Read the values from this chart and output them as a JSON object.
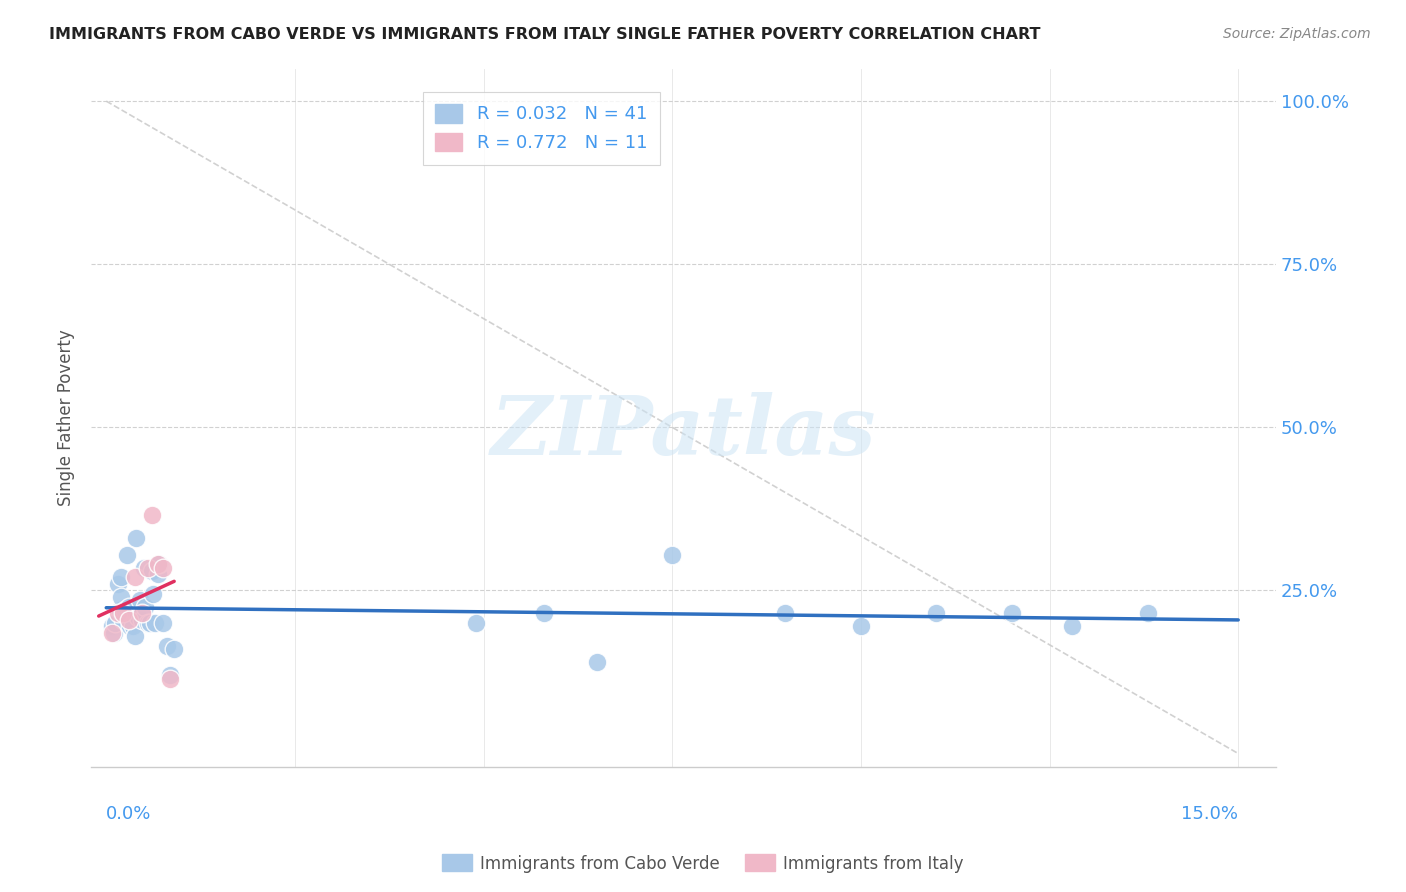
{
  "title": "IMMIGRANTS FROM CABO VERDE VS IMMIGRANTS FROM ITALY SINGLE FATHER POVERTY CORRELATION CHART",
  "source": "Source: ZipAtlas.com",
  "ylabel": "Single Father Poverty",
  "xlim": [
    0.0,
    0.15
  ],
  "ylim": [
    0.0,
    1.0
  ],
  "cabo_verde_R": 0.032,
  "cabo_verde_N": 41,
  "italy_R": 0.772,
  "italy_N": 11,
  "cabo_verde_color": "#a8c8e8",
  "italy_color": "#f0b8c8",
  "cabo_verde_line_color": "#3070c0",
  "italy_line_color": "#e03060",
  "text_color_blue": "#4499ee",
  "label_color": "#555555",
  "grid_color": "#cccccc",
  "cabo_verde_x": [
    0.0008,
    0.001,
    0.0012,
    0.0015,
    0.0018,
    0.002,
    0.002,
    0.0022,
    0.0025,
    0.0028,
    0.003,
    0.0032,
    0.0035,
    0.0038,
    0.004,
    0.0042,
    0.0045,
    0.0048,
    0.005,
    0.0052,
    0.0055,
    0.0058,
    0.006,
    0.0062,
    0.0065,
    0.0068,
    0.007,
    0.0075,
    0.008,
    0.0085,
    0.009,
    0.049,
    0.058,
    0.065,
    0.075,
    0.09,
    0.1,
    0.11,
    0.12,
    0.128,
    0.138
  ],
  "cabo_verde_y": [
    0.195,
    0.185,
    0.2,
    0.26,
    0.22,
    0.24,
    0.27,
    0.205,
    0.22,
    0.305,
    0.225,
    0.195,
    0.195,
    0.18,
    0.33,
    0.21,
    0.235,
    0.205,
    0.285,
    0.225,
    0.2,
    0.2,
    0.28,
    0.245,
    0.2,
    0.275,
    0.29,
    0.2,
    0.165,
    0.12,
    0.16,
    0.2,
    0.215,
    0.14,
    0.305,
    0.215,
    0.195,
    0.215,
    0.215,
    0.195,
    0.215
  ],
  "italy_x": [
    0.0008,
    0.0015,
    0.0022,
    0.003,
    0.0038,
    0.0048,
    0.0055,
    0.006,
    0.0068,
    0.0075,
    0.0085
  ],
  "italy_y": [
    0.185,
    0.215,
    0.215,
    0.205,
    0.27,
    0.215,
    0.285,
    0.365,
    0.29,
    0.285,
    0.115
  ],
  "watermark_text": "ZIPatlas",
  "background_color": "#ffffff"
}
